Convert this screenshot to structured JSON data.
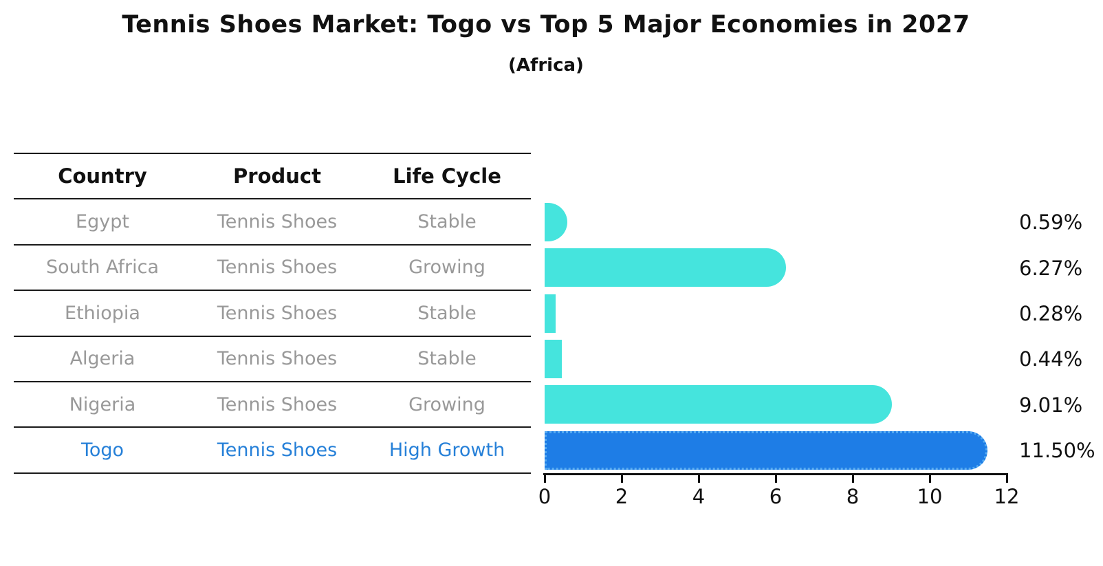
{
  "header": {
    "title": "Tennis Shoes Market: Togo vs Top 5 Major Economies in 2027",
    "subtitle": "(Africa)"
  },
  "table": {
    "headers": [
      "Country",
      "Product",
      "Life Cycle"
    ],
    "rows": [
      {
        "country": "Egypt",
        "product": "Tennis Shoes",
        "life_cycle": "Stable",
        "highlight": false
      },
      {
        "country": "South Africa",
        "product": "Tennis Shoes",
        "life_cycle": "Growing",
        "highlight": false
      },
      {
        "country": "Ethiopia",
        "product": "Tennis Shoes",
        "life_cycle": "Stable",
        "highlight": false
      },
      {
        "country": "Algeria",
        "product": "Tennis Shoes",
        "life_cycle": "Stable",
        "highlight": false
      },
      {
        "country": "Nigeria",
        "product": "Tennis Shoes",
        "life_cycle": "Growing",
        "highlight": false
      },
      {
        "country": "Togo",
        "product": "Tennis Shoes",
        "life_cycle": "High Growth",
        "highlight": true
      }
    ]
  },
  "chart_data": {
    "type": "bar",
    "orientation": "horizontal",
    "title": "Tennis Shoes Market: Togo vs Top 5 Major Economies in 2027",
    "subtitle": "(Africa)",
    "categories": [
      "Egypt",
      "South Africa",
      "Ethiopia",
      "Algeria",
      "Nigeria",
      "Togo"
    ],
    "values": [
      0.59,
      6.27,
      0.28,
      0.44,
      9.01,
      11.5
    ],
    "value_labels": [
      "0.59%",
      "6.27%",
      "0.28%",
      "0.44%",
      "9.01%",
      "11.50%"
    ],
    "xlim": [
      0,
      12
    ],
    "xticks": [
      "0",
      "2",
      "4",
      "6",
      "8",
      "10",
      "12"
    ],
    "grid": false,
    "legend": false,
    "highlight_index": 5
  },
  "colors": {
    "bar": "#45E4DD",
    "highlight_bar": "#1E7DE6",
    "highlight_edge": "#55AAF1",
    "table_text": "#999999",
    "highlight_text": "#2680D8",
    "heading_text": "#111111",
    "line": "#1A1A1A"
  }
}
